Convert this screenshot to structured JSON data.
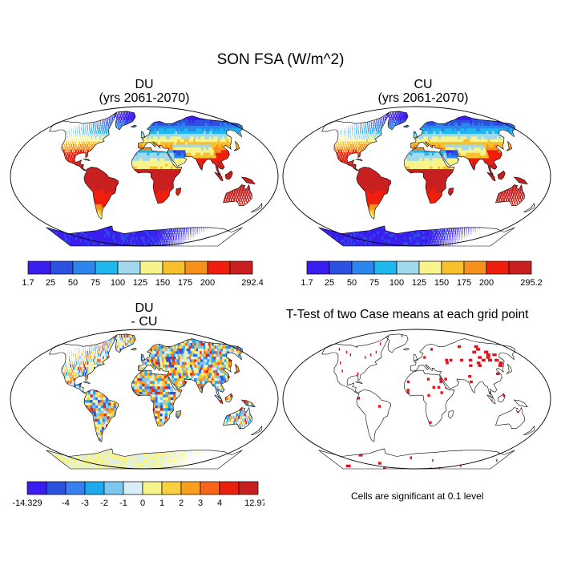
{
  "figure_title": "SON FSA (W/m^2)",
  "colors": {
    "seq": [
      "#3a1ef0",
      "#2c50e0",
      "#2c86ee",
      "#1eb8ee",
      "#a0d8ec",
      "#f8f48c",
      "#f8c02c",
      "#f8901e",
      "#f01e0c",
      "#c82020"
    ],
    "div": [
      "#3a1ef0",
      "#2c50e0",
      "#3a7ef0",
      "#1ea8ee",
      "#7cc8f0",
      "#d8eef8",
      "#f8f48c",
      "#f8d040",
      "#f8a01e",
      "#f86418",
      "#e8200c",
      "#c82020"
    ],
    "land": "#d8d8d8",
    "signif": "#e8101c"
  },
  "chart_data": [
    {
      "type": "heatmap",
      "map": "world-robinson",
      "title": "DU",
      "subtitle": "(yrs 2061-2070)",
      "colorbar": {
        "labels": [
          "1.7",
          "25",
          "50",
          "75",
          "100",
          "125",
          "150",
          "175",
          "200",
          "",
          "292.4"
        ],
        "min": 1.7,
        "max": 292.4,
        "levels": [
          25,
          50,
          75,
          100,
          125,
          150,
          175,
          200
        ]
      }
    },
    {
      "type": "heatmap",
      "map": "world-robinson",
      "title": "CU",
      "subtitle": "(yrs 2061-2070)",
      "colorbar": {
        "labels": [
          "1.7",
          "25",
          "50",
          "75",
          "100",
          "125",
          "150",
          "175",
          "200",
          "",
          "295.2"
        ],
        "min": 1.7,
        "max": 295.2,
        "levels": [
          25,
          50,
          75,
          100,
          125,
          150,
          175,
          200
        ]
      }
    },
    {
      "type": "heatmap",
      "map": "world-robinson",
      "title": "DU",
      "subtitle": "- CU",
      "colorbar": {
        "labels": [
          "-14.329",
          "",
          "-4",
          "-3",
          "-2",
          "-1",
          "0",
          "1",
          "2",
          "3",
          "4",
          "",
          "12.973"
        ],
        "min": -14.329,
        "max": 12.973,
        "levels": [
          -4,
          -3,
          -2,
          -1,
          0,
          1,
          2,
          3,
          4
        ]
      }
    },
    {
      "type": "heatmap",
      "map": "world-robinson",
      "title": "T-Test of two Case means at each grid point",
      "note": "Cells are significant at 0.1 level",
      "significance_level": 0.1
    }
  ]
}
